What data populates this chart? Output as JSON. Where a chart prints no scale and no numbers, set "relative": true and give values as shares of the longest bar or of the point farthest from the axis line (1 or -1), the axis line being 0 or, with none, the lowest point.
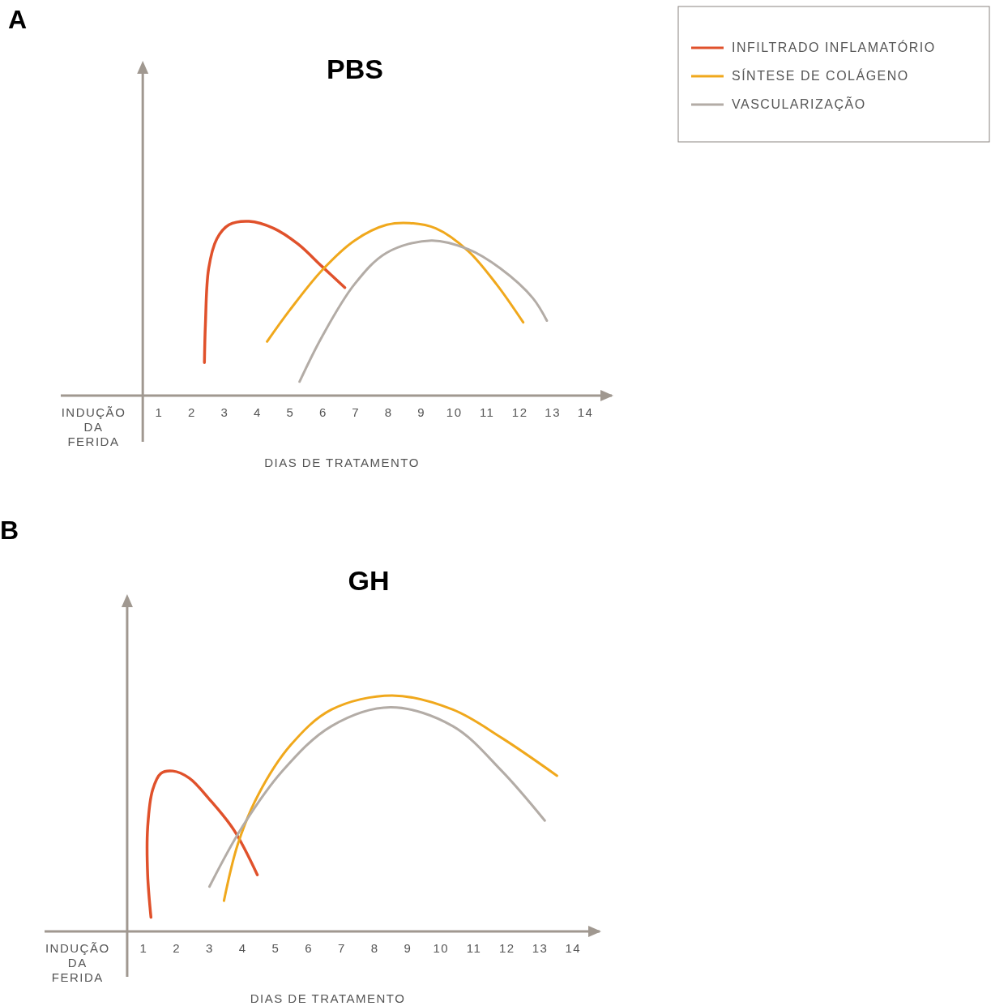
{
  "chart_data": [
    {
      "type": "line",
      "title": "PBS",
      "annotations": [
        "A"
      ],
      "xlabel": "DIAS DE TRATAMENTO",
      "relative": true,
      "legend": "top right",
      "ref_lines": [
        {
          "axis": "x",
          "value": 0.5,
          "color": "#a09890"
        }
      ],
      "xlim": [
        -2,
        14.8
      ],
      "xticks": [
        {
          "value": -1,
          "label": "INDUÇÃO DA FERIDA"
        },
        1,
        2,
        3,
        4,
        5,
        6,
        7,
        8,
        9,
        10,
        11,
        12,
        13,
        14
      ],
      "tick_labels": "x",
      "grid": false,
      "marker": "none",
      "line_style": "solid",
      "series": [
        {
          "name": "INFILTRADO INFLAMATÓRIO",
          "color": "#e0512b",
          "x": [
            2.38,
            2.41,
            2.51,
            2.76,
            3.13,
            3.74,
            4.49,
            5.23,
            5.97,
            6.66
          ],
          "values": [
            0.19,
            0.41,
            0.73,
            0.9,
            0.98,
            1,
            0.96,
            0.87,
            0.74,
            0.62
          ]
        },
        {
          "name": "SÍNTESE DE COLÁGENO",
          "color": "#f0a81c",
          "x": [
            4.29,
            4.98,
            5.97,
            6.96,
            7.94,
            8.64,
            9.43,
            10.42,
            11.28,
            12.1
          ],
          "values": [
            0.31,
            0.49,
            0.72,
            0.89,
            0.98,
            0.99,
            0.96,
            0.83,
            0.64,
            0.42
          ]
        },
        {
          "name": "VASCULARIZAÇÃO",
          "color": "#b3aca6",
          "x": [
            5.28,
            5.97,
            6.96,
            7.94,
            9.3,
            10.42,
            11.4,
            12.39,
            12.82
          ],
          "values": [
            0.08,
            0.34,
            0.64,
            0.82,
            0.89,
            0.84,
            0.73,
            0.56,
            0.43
          ]
        }
      ]
    },
    {
      "type": "line",
      "title": "GH",
      "annotations": [
        "B"
      ],
      "xlabel": "DIAS DE TRATAMENTO",
      "relative": true,
      "ref_lines": [
        {
          "axis": "x",
          "value": 0.5,
          "color": "#a09890"
        }
      ],
      "xlim": [
        -2,
        14.8
      ],
      "xticks": [
        {
          "value": -1,
          "label": "INDUÇÃO DA FERIDA"
        },
        1,
        2,
        3,
        4,
        5,
        6,
        7,
        8,
        9,
        10,
        11,
        12,
        13,
        14
      ],
      "tick_labels": "x",
      "grid": false,
      "marker": "none",
      "line_style": "solid",
      "series": [
        {
          "color": "#e0512b",
          "x": [
            1.22,
            1.12,
            1.12,
            1.27,
            1.52,
            1.88,
            2.38,
            2.99,
            3.73,
            4.44
          ],
          "values": [
            0.06,
            0.24,
            0.44,
            0.6,
            0.67,
            0.68,
            0.65,
            0.56,
            0.43,
            0.24
          ]
        },
        {
          "color": "#f0a81c",
          "x": [
            3.43,
            3.85,
            4.47,
            5.45,
            6.68,
            8.52,
            10.36,
            11.84,
            13.51
          ],
          "values": [
            0.13,
            0.37,
            0.58,
            0.79,
            0.94,
            1,
            0.94,
            0.82,
            0.66
          ]
        },
        {
          "color": "#b3aca6",
          "x": [
            2.99,
            3.97,
            5.2,
            6.68,
            8.47,
            10.36,
            11.84,
            13.14
          ],
          "values": [
            0.19,
            0.44,
            0.68,
            0.87,
            0.95,
            0.87,
            0.68,
            0.47
          ]
        }
      ]
    }
  ]
}
